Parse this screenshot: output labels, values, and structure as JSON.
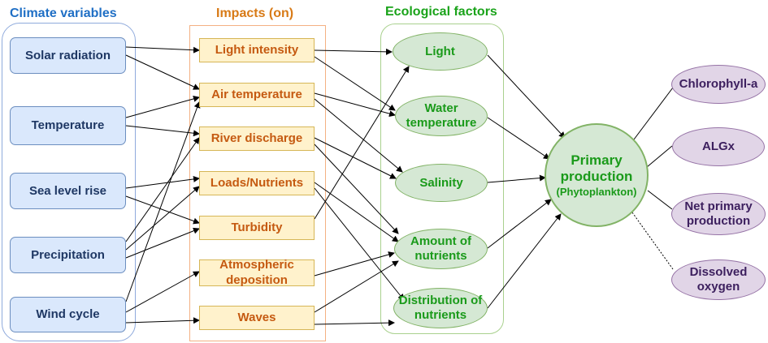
{
  "headers": {
    "climate": "Climate variables",
    "impacts": "Impacts (on)",
    "ecological": "Ecological factors"
  },
  "colors": {
    "climate_header": "#1f6fc5",
    "impacts_header": "#d87a16",
    "ecological_header": "#1aa31a"
  },
  "climate": {
    "solar": "Solar radiation",
    "temperature": "Temperature",
    "sea_level": "Sea level rise",
    "precipitation": "Precipitation",
    "wind": "Wind cycle"
  },
  "impacts": {
    "light_intensity": "Light intensity",
    "air_temperature": "Air temperature",
    "river_discharge": "River discharge",
    "loads_nutrients": "Loads/Nutrients",
    "turbidity": "Turbidity",
    "atmospheric_deposition": "Atmospheric deposition",
    "waves": "Waves"
  },
  "ecological": {
    "light": "Light",
    "water_temperature": "Water temperature",
    "salinity": "Salinity",
    "amount_nutrients": "Amount of nutrients",
    "distribution_nutrients": "Distribution of nutrients"
  },
  "primary": {
    "title": "Primary production",
    "subtitle": "(Phytoplankton)"
  },
  "outcomes": {
    "chlorophyll": "Chlorophyll-a",
    "algx": "ALGx",
    "npp": "Net primary production",
    "oxygen": "Dissolved oxygen"
  }
}
